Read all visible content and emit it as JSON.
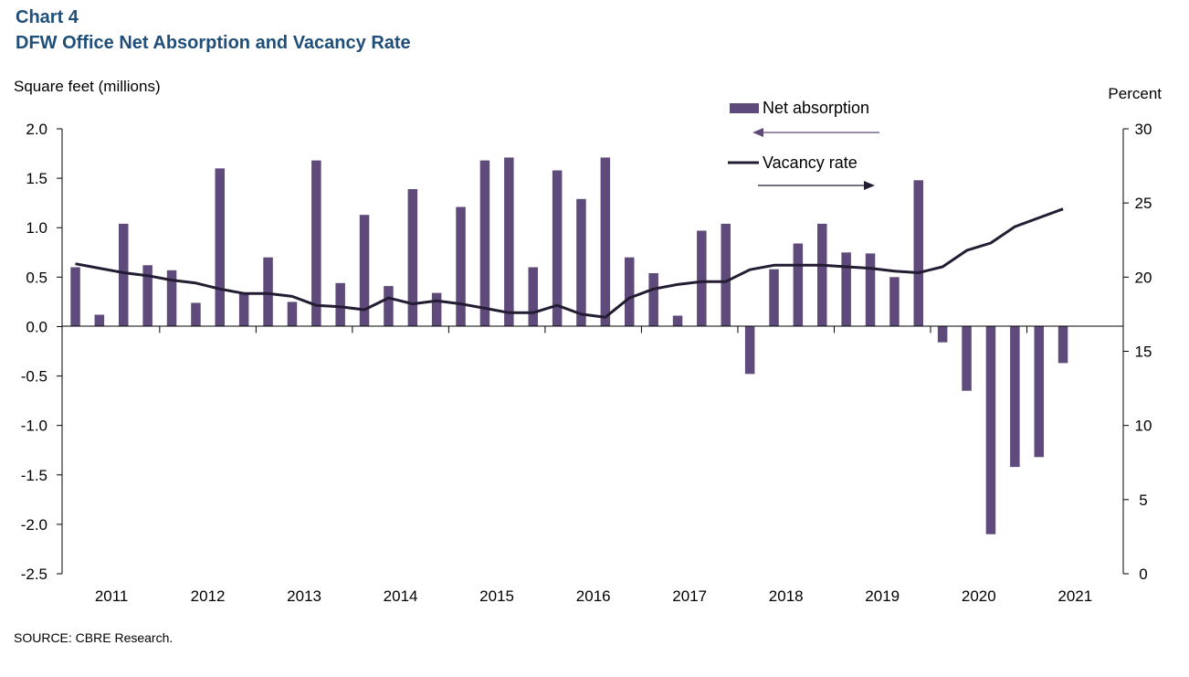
{
  "header": {
    "label": "Chart 4",
    "title": "DFW Office Net Absorption and Vacancy Rate"
  },
  "source": "SOURCE:  CBRE Research.",
  "colors": {
    "bar": "#5e4b7b",
    "line": "#231c33",
    "title": "#1f4e79"
  },
  "chart_data": {
    "type": "bar+line",
    "title": "DFW Office Net Absorption and Vacancy Rate",
    "ylabel_left": "Square feet (millions)",
    "ylabel_right": "Percent",
    "ylim_left": [
      -2.5,
      2.0
    ],
    "ylim_right": [
      0,
      30
    ],
    "yticks_left": [
      "2.0",
      "1.5",
      "1.0",
      "0.5",
      "0.0",
      "-0.5",
      "-1.0",
      "-1.5",
      "-2.0",
      "-2.5"
    ],
    "yticks_right": [
      "30",
      "25",
      "20",
      "15",
      "10",
      "5",
      "0"
    ],
    "year_labels": [
      "2011",
      "2012",
      "2013",
      "2014",
      "2015",
      "2016",
      "2017",
      "2018",
      "2019",
      "2020",
      "2021"
    ],
    "legend": {
      "bar_label": "Net absorption",
      "line_label": "Vacancy rate"
    },
    "series": [
      {
        "name": "Net absorption",
        "axis": "left",
        "type": "bar",
        "values": [
          0.6,
          0.12,
          1.04,
          0.62,
          0.57,
          0.24,
          1.6,
          0.34,
          0.7,
          0.25,
          1.68,
          0.44,
          1.13,
          0.41,
          1.39,
          0.34,
          1.21,
          1.68,
          1.71,
          0.6,
          1.58,
          1.29,
          1.71,
          0.7,
          0.54,
          0.11,
          0.97,
          1.04,
          -0.48,
          0.58,
          0.84,
          1.04,
          0.75,
          0.74,
          0.5,
          1.48,
          -0.16,
          -0.65,
          -2.1,
          -1.42,
          -1.32,
          -0.37
        ]
      },
      {
        "name": "Vacancy rate",
        "axis": "right",
        "type": "line",
        "values": [
          20.9,
          20.6,
          20.3,
          20.1,
          19.8,
          19.6,
          19.2,
          18.9,
          18.9,
          18.7,
          18.1,
          18.0,
          17.8,
          18.6,
          18.2,
          18.4,
          18.2,
          17.9,
          17.6,
          17.6,
          18.1,
          17.5,
          17.3,
          18.6,
          19.2,
          19.5,
          19.7,
          19.7,
          20.5,
          20.8,
          20.8,
          20.8,
          20.7,
          20.6,
          20.4,
          20.3,
          20.7,
          21.8,
          22.3,
          23.4,
          24.0,
          24.6
        ]
      }
    ]
  }
}
